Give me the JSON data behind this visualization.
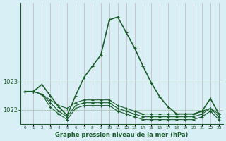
{
  "title": "Graphe pression niveau de la mer (hPa)",
  "background_color": "#d8eff5",
  "line_color": "#1a5c2a",
  "vgrid_color": "#c8b0b8",
  "hgrid_color": "#a8c8b0",
  "x_ticks": [
    0,
    1,
    2,
    3,
    4,
    5,
    6,
    7,
    8,
    9,
    10,
    11,
    12,
    13,
    14,
    15,
    16,
    17,
    18,
    19,
    20,
    21,
    22,
    23
  ],
  "y_ticks": [
    1022,
    1023
  ],
  "ylim": [
    1021.5,
    1025.8
  ],
  "xlim": [
    -0.5,
    23.5
  ],
  "series": [
    {
      "x": [
        0,
        1,
        2,
        3,
        4,
        5,
        6,
        7,
        8,
        9,
        10,
        11,
        12,
        13,
        14,
        15,
        16,
        17,
        18,
        19,
        20,
        21,
        22,
        23
      ],
      "y": [
        1022.65,
        1022.65,
        1022.55,
        1022.35,
        1022.15,
        1022.05,
        1022.25,
        1022.35,
        1022.35,
        1022.35,
        1022.35,
        1022.15,
        1022.05,
        1021.95,
        1021.85,
        1021.85,
        1021.85,
        1021.85,
        1021.85,
        1021.85,
        1021.85,
        1021.95,
        1022.05,
        1021.85
      ],
      "linewidth": 0.8,
      "marker": "+"
    },
    {
      "x": [
        0,
        1,
        2,
        3,
        4,
        5,
        6,
        7,
        8,
        9,
        10,
        11,
        12,
        13,
        14,
        15,
        16,
        17,
        18,
        19,
        20,
        21,
        22,
        23
      ],
      "y": [
        1022.65,
        1022.65,
        1022.55,
        1022.25,
        1021.95,
        1021.75,
        1022.15,
        1022.25,
        1022.25,
        1022.25,
        1022.25,
        1022.05,
        1021.95,
        1021.85,
        1021.75,
        1021.75,
        1021.75,
        1021.75,
        1021.75,
        1021.75,
        1021.75,
        1021.85,
        1022.05,
        1021.75
      ],
      "linewidth": 0.8,
      "marker": "+"
    },
    {
      "x": [
        0,
        1,
        2,
        3,
        4,
        5,
        6,
        7,
        8,
        9,
        10,
        11,
        12,
        13,
        14,
        15,
        16,
        17,
        18,
        19,
        20,
        21,
        22,
        23
      ],
      "y": [
        1022.65,
        1022.65,
        1022.55,
        1022.1,
        1021.85,
        1021.65,
        1022.05,
        1022.15,
        1022.15,
        1022.15,
        1022.15,
        1021.95,
        1021.85,
        1021.75,
        1021.65,
        1021.65,
        1021.65,
        1021.65,
        1021.65,
        1021.65,
        1021.65,
        1021.75,
        1021.95,
        1021.65
      ],
      "linewidth": 0.8,
      "marker": "+"
    },
    {
      "x": [
        0,
        1,
        2,
        3,
        4,
        5,
        6,
        7,
        8,
        9,
        10,
        11,
        12,
        13,
        14,
        15,
        16,
        17,
        18,
        19,
        20,
        21,
        22,
        23
      ],
      "y": [
        1022.65,
        1022.65,
        1022.9,
        1022.5,
        1022.1,
        1021.8,
        1022.5,
        1023.15,
        1023.55,
        1023.95,
        1025.2,
        1025.3,
        1024.75,
        1024.2,
        1023.55,
        1022.95,
        1022.45,
        1022.1,
        1021.85,
        1021.85,
        1021.85,
        1021.95,
        1022.4,
        1021.85
      ],
      "linewidth": 1.2,
      "marker": "+"
    }
  ]
}
